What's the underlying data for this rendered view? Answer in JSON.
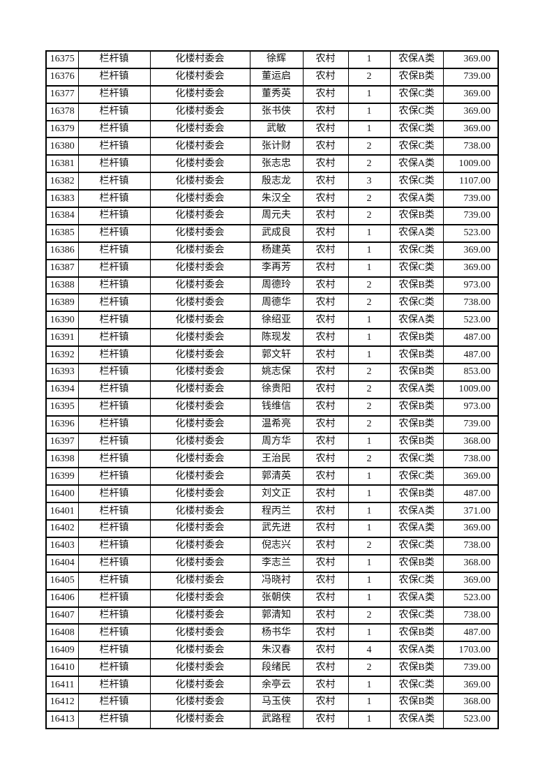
{
  "table": {
    "rows": [
      [
        "16375",
        "栏杆镇",
        "化楼村委会",
        "徐辉",
        "农村",
        "1",
        "农保A类",
        "369.00"
      ],
      [
        "16376",
        "栏杆镇",
        "化楼村委会",
        "董运启",
        "农村",
        "2",
        "农保B类",
        "739.00"
      ],
      [
        "16377",
        "栏杆镇",
        "化楼村委会",
        "董秀英",
        "农村",
        "1",
        "农保C类",
        "369.00"
      ],
      [
        "16378",
        "栏杆镇",
        "化楼村委会",
        "张书侠",
        "农村",
        "1",
        "农保C类",
        "369.00"
      ],
      [
        "16379",
        "栏杆镇",
        "化楼村委会",
        "武敏",
        "农村",
        "1",
        "农保C类",
        "369.00"
      ],
      [
        "16380",
        "栏杆镇",
        "化楼村委会",
        "张计财",
        "农村",
        "2",
        "农保C类",
        "738.00"
      ],
      [
        "16381",
        "栏杆镇",
        "化楼村委会",
        "张志忠",
        "农村",
        "2",
        "农保A类",
        "1009.00"
      ],
      [
        "16382",
        "栏杆镇",
        "化楼村委会",
        "殷志龙",
        "农村",
        "3",
        "农保C类",
        "1107.00"
      ],
      [
        "16383",
        "栏杆镇",
        "化楼村委会",
        "朱汉全",
        "农村",
        "2",
        "农保A类",
        "739.00"
      ],
      [
        "16384",
        "栏杆镇",
        "化楼村委会",
        "周元夫",
        "农村",
        "2",
        "农保B类",
        "739.00"
      ],
      [
        "16385",
        "栏杆镇",
        "化楼村委会",
        "武成良",
        "农村",
        "1",
        "农保A类",
        "523.00"
      ],
      [
        "16386",
        "栏杆镇",
        "化楼村委会",
        "杨建英",
        "农村",
        "1",
        "农保C类",
        "369.00"
      ],
      [
        "16387",
        "栏杆镇",
        "化楼村委会",
        "李再芳",
        "农村",
        "1",
        "农保C类",
        "369.00"
      ],
      [
        "16388",
        "栏杆镇",
        "化楼村委会",
        "周德玲",
        "农村",
        "2",
        "农保B类",
        "973.00"
      ],
      [
        "16389",
        "栏杆镇",
        "化楼村委会",
        "周德华",
        "农村",
        "2",
        "农保C类",
        "738.00"
      ],
      [
        "16390",
        "栏杆镇",
        "化楼村委会",
        "徐绍亚",
        "农村",
        "1",
        "农保A类",
        "523.00"
      ],
      [
        "16391",
        "栏杆镇",
        "化楼村委会",
        "陈现发",
        "农村",
        "1",
        "农保B类",
        "487.00"
      ],
      [
        "16392",
        "栏杆镇",
        "化楼村委会",
        "郭文轩",
        "农村",
        "1",
        "农保B类",
        "487.00"
      ],
      [
        "16393",
        "栏杆镇",
        "化楼村委会",
        "姚志保",
        "农村",
        "2",
        "农保B类",
        "853.00"
      ],
      [
        "16394",
        "栏杆镇",
        "化楼村委会",
        "徐贵阳",
        "农村",
        "2",
        "农保A类",
        "1009.00"
      ],
      [
        "16395",
        "栏杆镇",
        "化楼村委会",
        "钱维信",
        "农村",
        "2",
        "农保B类",
        "973.00"
      ],
      [
        "16396",
        "栏杆镇",
        "化楼村委会",
        "温希亮",
        "农村",
        "2",
        "农保B类",
        "739.00"
      ],
      [
        "16397",
        "栏杆镇",
        "化楼村委会",
        "周方华",
        "农村",
        "1",
        "农保B类",
        "368.00"
      ],
      [
        "16398",
        "栏杆镇",
        "化楼村委会",
        "王治民",
        "农村",
        "2",
        "农保C类",
        "738.00"
      ],
      [
        "16399",
        "栏杆镇",
        "化楼村委会",
        "郭清英",
        "农村",
        "1",
        "农保C类",
        "369.00"
      ],
      [
        "16400",
        "栏杆镇",
        "化楼村委会",
        "刘文正",
        "农村",
        "1",
        "农保B类",
        "487.00"
      ],
      [
        "16401",
        "栏杆镇",
        "化楼村委会",
        "程丙兰",
        "农村",
        "1",
        "农保A类",
        "371.00"
      ],
      [
        "16402",
        "栏杆镇",
        "化楼村委会",
        "武先进",
        "农村",
        "1",
        "农保A类",
        "369.00"
      ],
      [
        "16403",
        "栏杆镇",
        "化楼村委会",
        "倪志兴",
        "农村",
        "2",
        "农保C类",
        "738.00"
      ],
      [
        "16404",
        "栏杆镇",
        "化楼村委会",
        "李志兰",
        "农村",
        "1",
        "农保B类",
        "368.00"
      ],
      [
        "16405",
        "栏杆镇",
        "化楼村委会",
        "冯晓衬",
        "农村",
        "1",
        "农保C类",
        "369.00"
      ],
      [
        "16406",
        "栏杆镇",
        "化楼村委会",
        "张朝侠",
        "农村",
        "1",
        "农保A类",
        "523.00"
      ],
      [
        "16407",
        "栏杆镇",
        "化楼村委会",
        "郭清知",
        "农村",
        "2",
        "农保C类",
        "738.00"
      ],
      [
        "16408",
        "栏杆镇",
        "化楼村委会",
        "杨书华",
        "农村",
        "1",
        "农保B类",
        "487.00"
      ],
      [
        "16409",
        "栏杆镇",
        "化楼村委会",
        "朱汉春",
        "农村",
        "4",
        "农保A类",
        "1703.00"
      ],
      [
        "16410",
        "栏杆镇",
        "化楼村委会",
        "段绪民",
        "农村",
        "2",
        "农保B类",
        "739.00"
      ],
      [
        "16411",
        "栏杆镇",
        "化楼村委会",
        "余亭云",
        "农村",
        "1",
        "农保C类",
        "369.00"
      ],
      [
        "16412",
        "栏杆镇",
        "化楼村委会",
        "马玉侠",
        "农村",
        "1",
        "农保B类",
        "368.00"
      ],
      [
        "16413",
        "栏杆镇",
        "化楼村委会",
        "武路程",
        "农村",
        "1",
        "农保A类",
        "523.00"
      ]
    ]
  },
  "colors": {
    "page_background": "#ffffff",
    "table_border": "#000000",
    "text": "#121212"
  }
}
